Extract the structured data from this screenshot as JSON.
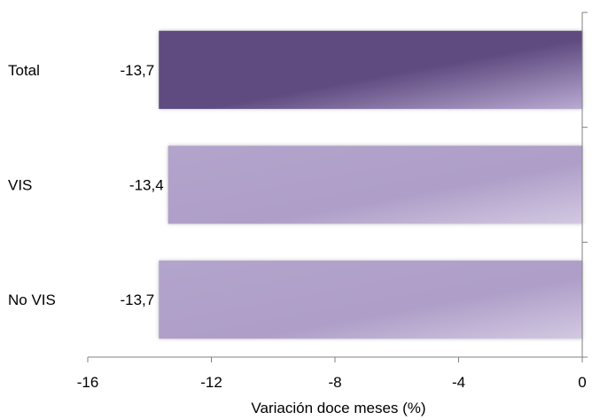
{
  "chart_data": {
    "type": "bar",
    "orientation": "horizontal",
    "title": "",
    "xlabel": "Variación doce meses (%)",
    "ylabel": "",
    "xlim": [
      -16,
      0
    ],
    "xticks": [
      -16,
      -12,
      -8,
      -4,
      0
    ],
    "xtick_labels": [
      "-16",
      "-12",
      "-8",
      "-4",
      "0"
    ],
    "categories": [
      "Total",
      "VIS",
      "No VIS"
    ],
    "values": [
      -13.7,
      -13.4,
      -13.7
    ],
    "data_labels": [
      "-13,7",
      "-13,4",
      "-13,7"
    ],
    "grid": false,
    "legend": "none",
    "colors": {
      "highlight_bar": "#5d4a7e",
      "bar": "#b2a2ca",
      "axis": "#808080"
    }
  }
}
